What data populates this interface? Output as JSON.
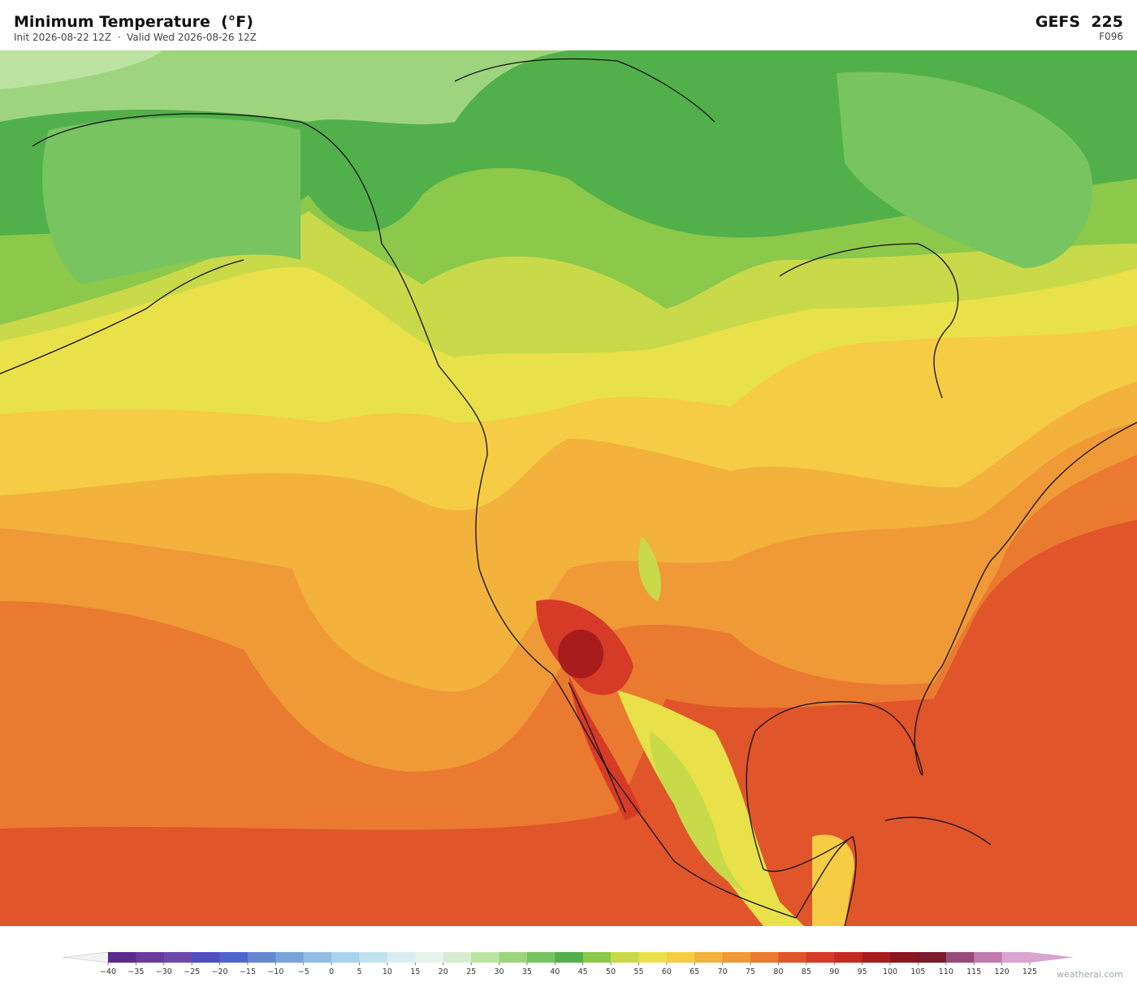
{
  "header": {
    "title": "Minimum Temperature  (°F)",
    "subtitle": "Init 2026-08-22 12Z  ·  Valid Wed 2026-08-26 12Z",
    "model": "GEFS  225",
    "forecast_hour": "F096"
  },
  "colorbar": {
    "ticks": [
      {
        "value": -40,
        "label": "−40"
      },
      {
        "value": -35,
        "label": "−35"
      },
      {
        "value": -30,
        "label": "−30"
      },
      {
        "value": -25,
        "label": "−25"
      },
      {
        "value": -20,
        "label": "−20"
      },
      {
        "value": -15,
        "label": "−15"
      },
      {
        "value": -10,
        "label": "−10"
      },
      {
        "value": -5,
        "label": "−5"
      },
      0,
      5,
      10,
      15,
      20,
      25,
      30,
      35,
      40,
      45,
      50,
      55,
      60,
      65,
      70,
      75,
      80,
      85,
      90,
      95,
      100,
      105,
      110,
      115,
      120,
      125
    ],
    "colors": [
      "#5b2a8f",
      "#6a3a9e",
      "#6f48ad",
      "#4f4fbf",
      "#5066cc",
      "#6487d0",
      "#7aa3d8",
      "#93bde2",
      "#a9d3ea",
      "#c0e2ef",
      "#d8eef3",
      "#e6f4ec",
      "#d6eecf",
      "#bde3a3",
      "#9fd47f",
      "#78c460",
      "#52b04a",
      "#8cc84a",
      "#c8d94a",
      "#e8e14a",
      "#f5cc44",
      "#f2b23c",
      "#ef9a36",
      "#ea7a30",
      "#e0552a",
      "#d53b26",
      "#c42a22",
      "#a81c1e",
      "#8b1620",
      "#7a1a2a",
      "#9a4a7a",
      "#c07aae",
      "#d8a4d0"
    ],
    "extend_colors": [
      "#f2f2f2",
      "#d8a4d0"
    ]
  },
  "watermark": "weatherai.com"
}
